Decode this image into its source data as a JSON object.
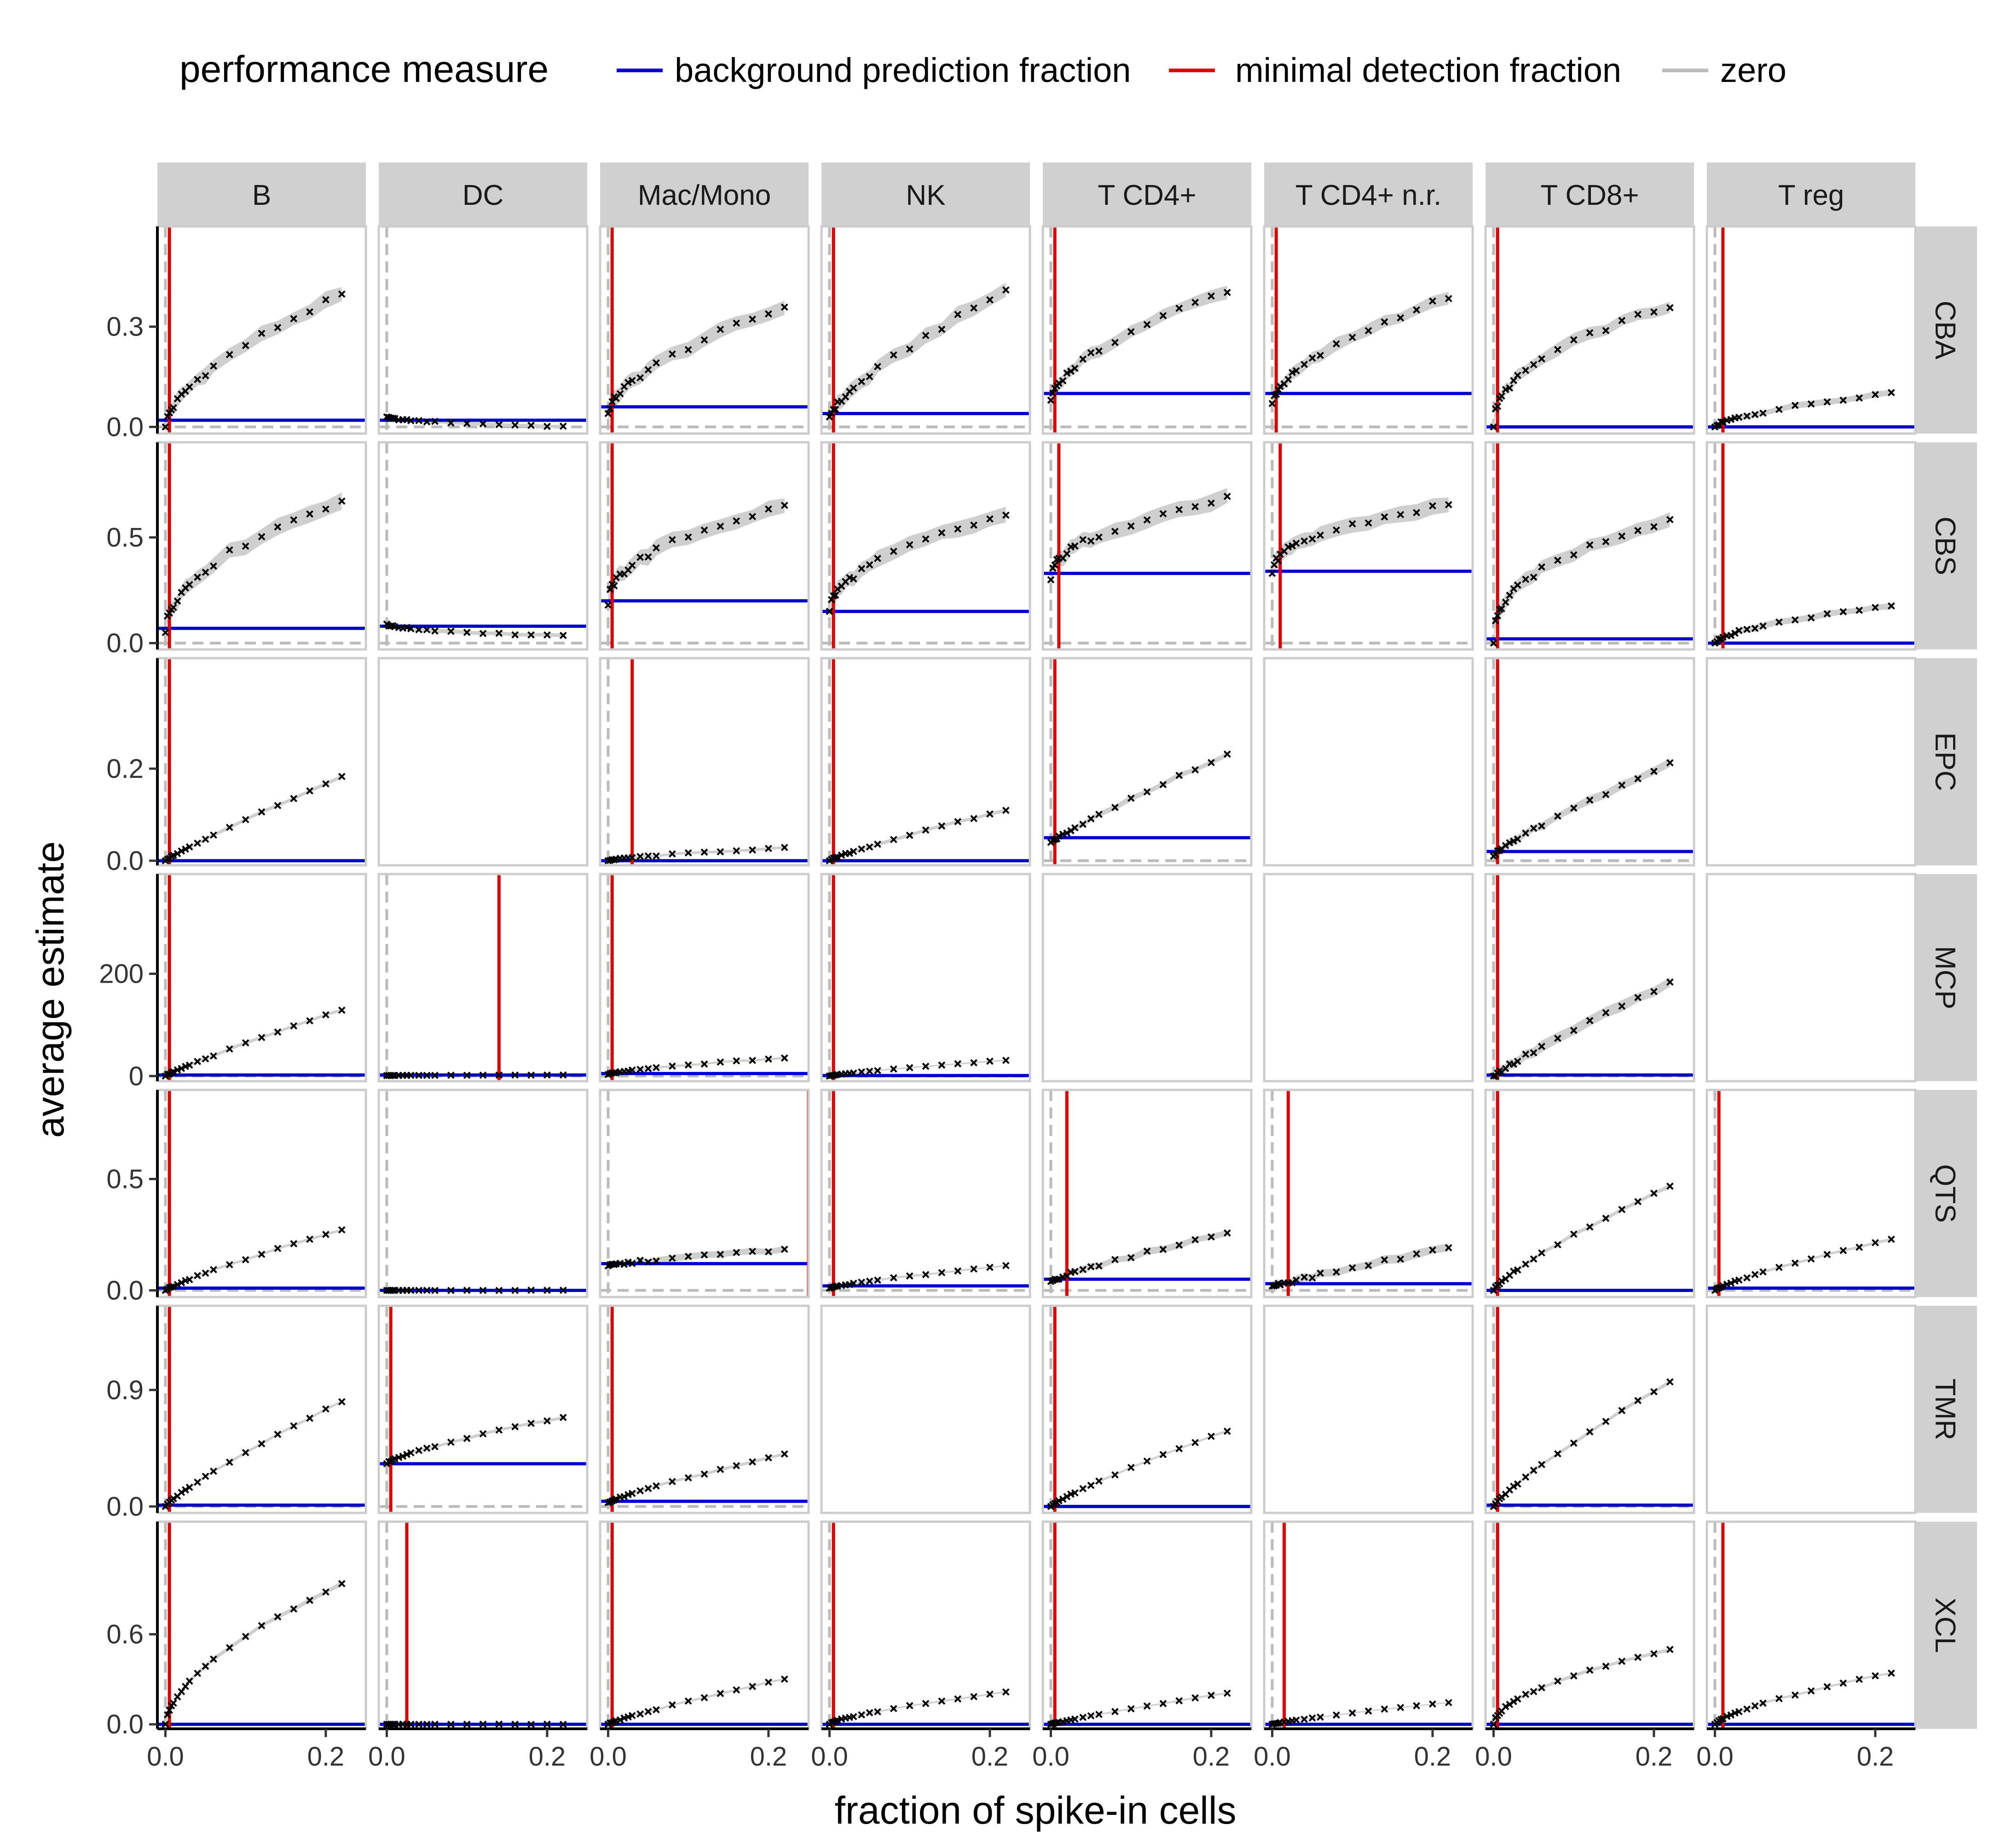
{
  "chart_data": {
    "type": "scatter",
    "legend": {
      "title": "performance measure",
      "placement": "top",
      "entries": [
        {
          "label": "background prediction fraction",
          "color": "#0000cc"
        },
        {
          "label": "minimal detection fraction",
          "color": "#dd0000"
        },
        {
          "label": "zero",
          "color": "#bbbbbb"
        }
      ]
    },
    "xlabel": "fraction of spike-in cells",
    "ylabel": "average estimate",
    "xlim": [
      -0.01,
      0.25
    ],
    "x_ticks": [
      0.0,
      0.2
    ],
    "x_tick_labels": [
      "0.0",
      "0.2"
    ],
    "x_fractions": [
      0,
      0.0025,
      0.005,
      0.0075,
      0.01,
      0.015,
      0.02,
      0.025,
      0.03,
      0.04,
      0.05,
      0.06,
      0.08,
      0.1,
      0.12,
      0.14,
      0.16,
      0.18,
      0.2,
      0.22,
      0.25
    ],
    "cell_types": [
      "B",
      "DC",
      "Mac/Mono",
      "NK",
      "T CD4+",
      "T CD4+ n.r.",
      "T CD8+",
      "T reg"
    ],
    "methods": [
      {
        "name": "CBA",
        "ylim": [
          -0.02,
          0.6
        ],
        "y_ticks": [
          0.0,
          0.3
        ],
        "y_tick_labels": [
          "0.0",
          "0.3"
        ]
      },
      {
        "name": "CBS",
        "ylim": [
          -0.03,
          0.95
        ],
        "y_ticks": [
          0.0,
          0.5
        ],
        "y_tick_labels": [
          "0.0",
          "0.5"
        ]
      },
      {
        "name": "EPC",
        "ylim": [
          -0.01,
          0.44
        ],
        "y_ticks": [
          0.0,
          0.2
        ],
        "y_tick_labels": [
          "0.0",
          "0.2"
        ]
      },
      {
        "name": "MCP",
        "ylim": [
          -10,
          395
        ],
        "y_ticks": [
          0,
          200
        ],
        "y_tick_labels": [
          "0",
          "200"
        ]
      },
      {
        "name": "QTS",
        "ylim": [
          -0.03,
          0.9
        ],
        "y_ticks": [
          0.0,
          0.5
        ],
        "y_tick_labels": [
          "0.0",
          "0.5"
        ]
      },
      {
        "name": "TMR",
        "ylim": [
          -0.05,
          1.55
        ],
        "y_ticks": [
          0.0,
          0.9
        ],
        "y_tick_labels": [
          "0.0",
          "0.9"
        ]
      },
      {
        "name": "XCL",
        "ylim": [
          -0.03,
          1.35
        ],
        "y_ticks": [
          0.0,
          0.6
        ],
        "y_tick_labels": [
          "0.0",
          "0.6"
        ]
      }
    ],
    "panels": [
      {
        "method": "CBA",
        "cell": "B",
        "bg": 0.02,
        "mdf": 0.005,
        "start": 0.0,
        "end": 0.42,
        "shape": 0.6,
        "band": 0.03
      },
      {
        "method": "CBA",
        "cell": "DC",
        "bg": 0.02,
        "mdf": null,
        "start": 0.03,
        "end": 0.0,
        "shape": 0.5,
        "band": 0.006
      },
      {
        "method": "CBA",
        "cell": "Mac/Mono",
        "bg": 0.06,
        "mdf": 0.005,
        "start": 0.04,
        "end": 0.38,
        "shape": 0.6,
        "band": 0.03
      },
      {
        "method": "CBA",
        "cell": "NK",
        "bg": 0.04,
        "mdf": 0.005,
        "start": 0.03,
        "end": 0.44,
        "shape": 0.75,
        "band": 0.03
      },
      {
        "method": "CBA",
        "cell": "T CD4+",
        "bg": 0.1,
        "mdf": 0.005,
        "start": 0.08,
        "end": 0.43,
        "shape": 0.6,
        "band": 0.025
      },
      {
        "method": "CBA",
        "cell": "T CD4+ n.r.",
        "bg": 0.1,
        "mdf": 0.005,
        "start": 0.07,
        "end": 0.41,
        "shape": 0.6,
        "band": 0.025
      },
      {
        "method": "CBA",
        "cell": "T CD8+",
        "bg": 0.0,
        "mdf": 0.005,
        "start": 0.0,
        "end": 0.38,
        "shape": 0.45,
        "band": 0.025
      },
      {
        "method": "CBA",
        "cell": "T reg",
        "bg": 0.0,
        "mdf": 0.01,
        "start": 0.0,
        "end": 0.11,
        "shape": 0.65,
        "band": 0.012
      },
      {
        "method": "CBS",
        "cell": "B",
        "bg": 0.07,
        "mdf": 0.005,
        "start": 0.05,
        "end": 0.71,
        "shape": 0.5,
        "band": 0.05
      },
      {
        "method": "CBS",
        "cell": "DC",
        "bg": 0.08,
        "mdf": null,
        "start": 0.09,
        "end": 0.03,
        "shape": 0.5,
        "band": 0.012
      },
      {
        "method": "CBS",
        "cell": "Mac/Mono",
        "bg": 0.2,
        "mdf": 0.005,
        "start": 0.18,
        "end": 0.67,
        "shape": 0.45,
        "band": 0.05
      },
      {
        "method": "CBS",
        "cell": "NK",
        "bg": 0.15,
        "mdf": 0.005,
        "start": 0.15,
        "end": 0.63,
        "shape": 0.5,
        "band": 0.05
      },
      {
        "method": "CBS",
        "cell": "T CD4+",
        "bg": 0.33,
        "mdf": 0.01,
        "start": 0.3,
        "end": 0.7,
        "shape": 0.45,
        "band": 0.05
      },
      {
        "method": "CBS",
        "cell": "T CD4+ n.r.",
        "bg": 0.34,
        "mdf": 0.01,
        "start": 0.33,
        "end": 0.67,
        "shape": 0.45,
        "band": 0.05
      },
      {
        "method": "CBS",
        "cell": "T CD8+",
        "bg": 0.02,
        "mdf": 0.005,
        "start": 0.0,
        "end": 0.61,
        "shape": 0.4,
        "band": 0.045
      },
      {
        "method": "CBS",
        "cell": "T reg",
        "bg": 0.0,
        "mdf": 0.01,
        "start": 0.0,
        "end": 0.19,
        "shape": 0.6,
        "band": 0.02
      },
      {
        "method": "EPC",
        "cell": "B",
        "bg": 0.0,
        "mdf": 0.005,
        "start": 0.0,
        "end": 0.2,
        "shape": 0.9,
        "band": 0.005
      },
      {
        "method": "EPC",
        "cell": "DC",
        "bg": null,
        "mdf": null,
        "start": null,
        "end": null,
        "shape": null,
        "band": null
      },
      {
        "method": "EPC",
        "cell": "Mac/Mono",
        "bg": 0.0,
        "mdf": 0.03,
        "start": 0.0,
        "end": 0.03,
        "shape": 0.7,
        "band": 0.004
      },
      {
        "method": "EPC",
        "cell": "NK",
        "bg": 0.0,
        "mdf": 0.005,
        "start": 0.0,
        "end": 0.12,
        "shape": 0.85,
        "band": 0.005
      },
      {
        "method": "EPC",
        "cell": "T CD4+",
        "bg": 0.05,
        "mdf": 0.005,
        "start": 0.04,
        "end": 0.25,
        "shape": 0.9,
        "band": 0.008
      },
      {
        "method": "EPC",
        "cell": "T CD4+ n.r.",
        "bg": null,
        "mdf": null,
        "start": null,
        "end": null,
        "shape": null,
        "band": null
      },
      {
        "method": "EPC",
        "cell": "T CD8+",
        "bg": 0.02,
        "mdf": 0.005,
        "start": 0.01,
        "end": 0.23,
        "shape": 0.85,
        "band": 0.012
      },
      {
        "method": "EPC",
        "cell": "T reg",
        "bg": null,
        "mdf": null,
        "start": null,
        "end": null,
        "shape": null,
        "band": null
      },
      {
        "method": "MCP",
        "cell": "B",
        "bg": 2,
        "mdf": 0.005,
        "start": 0,
        "end": 143,
        "shape": 0.9,
        "band": 4
      },
      {
        "method": "MCP",
        "cell": "DC",
        "bg": 2,
        "mdf": 0.14,
        "start": 1,
        "end": 2,
        "shape": 0.5,
        "band": 0.6
      },
      {
        "method": "MCP",
        "cell": "Mac/Mono",
        "bg": 5,
        "mdf": 0.005,
        "start": 3,
        "end": 38,
        "shape": 0.7,
        "band": 3
      },
      {
        "method": "MCP",
        "cell": "NK",
        "bg": 1,
        "mdf": 0.005,
        "start": 0,
        "end": 34,
        "shape": 0.8,
        "band": 2
      },
      {
        "method": "MCP",
        "cell": "T CD4+",
        "bg": null,
        "mdf": null,
        "start": null,
        "end": null,
        "shape": null,
        "band": null
      },
      {
        "method": "MCP",
        "cell": "T CD4+ n.r.",
        "bg": null,
        "mdf": null,
        "start": null,
        "end": null,
        "shape": null,
        "band": null
      },
      {
        "method": "MCP",
        "cell": "T CD8+",
        "bg": 2,
        "mdf": 0.005,
        "start": 0,
        "end": 200,
        "shape": 0.9,
        "band": 14
      },
      {
        "method": "MCP",
        "cell": "T reg",
        "bg": null,
        "mdf": null,
        "start": null,
        "end": null,
        "shape": null,
        "band": null
      },
      {
        "method": "QTS",
        "cell": "B",
        "bg": 0.01,
        "mdf": 0.005,
        "start": 0.0,
        "end": 0.3,
        "shape": 0.85,
        "band": 0.008
      },
      {
        "method": "QTS",
        "cell": "DC",
        "bg": 0.0,
        "mdf": null,
        "start": 0.0,
        "end": 0.0,
        "shape": 0.5,
        "band": 0.002
      },
      {
        "method": "QTS",
        "cell": "Mac/Mono",
        "bg": 0.12,
        "mdf": 0.25,
        "start": 0.11,
        "end": 0.19,
        "shape": 0.8,
        "band": 0.02
      },
      {
        "method": "QTS",
        "cell": "NK",
        "bg": 0.02,
        "mdf": 0.005,
        "start": 0.01,
        "end": 0.12,
        "shape": 0.8,
        "band": 0.006
      },
      {
        "method": "QTS",
        "cell": "T CD4+",
        "bg": 0.05,
        "mdf": 0.02,
        "start": 0.04,
        "end": 0.28,
        "shape": 0.85,
        "band": 0.02
      },
      {
        "method": "QTS",
        "cell": "T CD4+ n.r.",
        "bg": 0.03,
        "mdf": 0.02,
        "start": 0.02,
        "end": 0.21,
        "shape": 0.95,
        "band": 0.025
      },
      {
        "method": "QTS",
        "cell": "T CD8+",
        "bg": 0.0,
        "mdf": 0.005,
        "start": 0.0,
        "end": 0.51,
        "shape": 0.8,
        "band": 0.012
      },
      {
        "method": "QTS",
        "cell": "T reg",
        "bg": 0.01,
        "mdf": 0.005,
        "start": 0.0,
        "end": 0.25,
        "shape": 0.8,
        "band": 0.008
      },
      {
        "method": "TMR",
        "cell": "B",
        "bg": 0.01,
        "mdf": 0.005,
        "start": 0.0,
        "end": 0.89,
        "shape": 0.85,
        "band": 0.015
      },
      {
        "method": "TMR",
        "cell": "DC",
        "bg": 0.33,
        "mdf": 0.005,
        "start": 0.33,
        "end": 0.72,
        "shape": 0.75,
        "band": 0.015
      },
      {
        "method": "TMR",
        "cell": "Mac/Mono",
        "bg": 0.04,
        "mdf": 0.005,
        "start": 0.03,
        "end": 0.44,
        "shape": 0.85,
        "band": 0.015
      },
      {
        "method": "TMR",
        "cell": "NK",
        "bg": null,
        "mdf": null,
        "start": null,
        "end": null,
        "shape": null,
        "band": null
      },
      {
        "method": "TMR",
        "cell": "T CD4+",
        "bg": 0.0,
        "mdf": 0.005,
        "start": 0.0,
        "end": 0.64,
        "shape": 0.85,
        "band": 0.012
      },
      {
        "method": "TMR",
        "cell": "T CD4+ n.r.",
        "bg": null,
        "mdf": null,
        "start": null,
        "end": null,
        "shape": null,
        "band": null
      },
      {
        "method": "TMR",
        "cell": "T CD8+",
        "bg": 0.01,
        "mdf": 0.005,
        "start": 0.0,
        "end": 1.06,
        "shape": 0.85,
        "band": 0.02
      },
      {
        "method": "TMR",
        "cell": "T reg",
        "bg": null,
        "mdf": null,
        "start": null,
        "end": null,
        "shape": null,
        "band": null
      },
      {
        "method": "XCL",
        "cell": "B",
        "bg": 0.0,
        "mdf": 0.005,
        "start": 0.0,
        "end": 1.0,
        "shape": 0.6,
        "band": 0.02
      },
      {
        "method": "XCL",
        "cell": "DC",
        "bg": 0.0,
        "mdf": 0.025,
        "start": 0.0,
        "end": 0.0,
        "shape": 0.5,
        "band": 0.003
      },
      {
        "method": "XCL",
        "cell": "Mac/Mono",
        "bg": 0.0,
        "mdf": 0.005,
        "start": 0.0,
        "end": 0.33,
        "shape": 0.85,
        "band": 0.01
      },
      {
        "method": "XCL",
        "cell": "NK",
        "bg": 0.0,
        "mdf": 0.005,
        "start": 0.0,
        "end": 0.23,
        "shape": 0.7,
        "band": 0.008
      },
      {
        "method": "XCL",
        "cell": "T CD4+",
        "bg": 0.0,
        "mdf": 0.005,
        "start": 0.0,
        "end": 0.23,
        "shape": 0.9,
        "band": 0.008
      },
      {
        "method": "XCL",
        "cell": "T CD4+ n.r.",
        "bg": 0.0,
        "mdf": 0.015,
        "start": 0.0,
        "end": 0.16,
        "shape": 0.85,
        "band": 0.006
      },
      {
        "method": "XCL",
        "cell": "T CD8+",
        "bg": 0.0,
        "mdf": 0.005,
        "start": 0.0,
        "end": 0.53,
        "shape": 0.55,
        "band": 0.015
      },
      {
        "method": "XCL",
        "cell": "T reg",
        "bg": 0.0,
        "mdf": 0.01,
        "start": 0.0,
        "end": 0.37,
        "shape": 0.7,
        "band": 0.01
      }
    ]
  }
}
